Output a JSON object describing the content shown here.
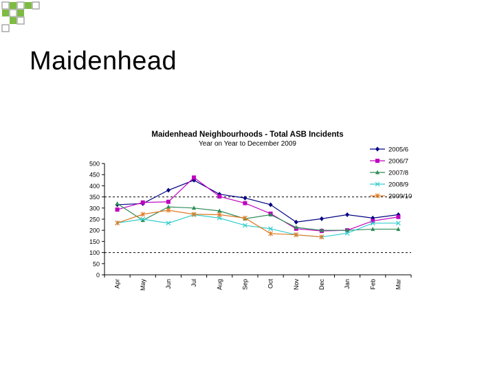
{
  "slide": {
    "title": "Maidenhead"
  },
  "colors": {
    "decor_green": "#7dbb42",
    "decor_grey": "#a9a9a9"
  },
  "chart_data": {
    "type": "line",
    "title": "Maidenhead Neighbourhoods - Total ASB Incidents",
    "subtitle": "Year on Year to December 2009",
    "xlabel": "",
    "ylabel": "",
    "ylim": [
      0,
      500
    ],
    "yticks": [
      0,
      50,
      100,
      150,
      200,
      250,
      300,
      350,
      400,
      450,
      500
    ],
    "categories": [
      "Apr",
      "May",
      "Jun",
      "Jul",
      "Aug",
      "Sep",
      "Oct",
      "Nov",
      "Dec",
      "Jan",
      "Feb",
      "Mar"
    ],
    "reference_lines": [
      350,
      100
    ],
    "legend_position": "top-right",
    "series": [
      {
        "name": "2005/6",
        "color": "#000080",
        "marker": "diamond",
        "values": [
          315,
          320,
          380,
          425,
          362,
          345,
          315,
          237,
          252,
          270,
          255,
          270
        ]
      },
      {
        "name": "2006/7",
        "color": "#c000c0",
        "marker": "square",
        "values": [
          293,
          325,
          328,
          437,
          352,
          322,
          275,
          207,
          197,
          200,
          242,
          260
        ]
      },
      {
        "name": "2007/8",
        "color": "#2e8b57",
        "marker": "triangle",
        "values": [
          320,
          245,
          305,
          300,
          287,
          252,
          270,
          213,
          200,
          200,
          205,
          205
        ]
      },
      {
        "name": "2008/9",
        "color": "#33cccc",
        "marker": "x",
        "values": [
          233,
          250,
          232,
          270,
          255,
          222,
          207,
          180,
          170,
          187,
          232,
          232
        ]
      },
      {
        "name": "2009/10",
        "color": "#e07820",
        "marker": "star",
        "values": [
          233,
          272,
          290,
          272,
          270,
          255,
          185,
          180,
          170,
          null,
          null,
          null
        ]
      }
    ]
  }
}
